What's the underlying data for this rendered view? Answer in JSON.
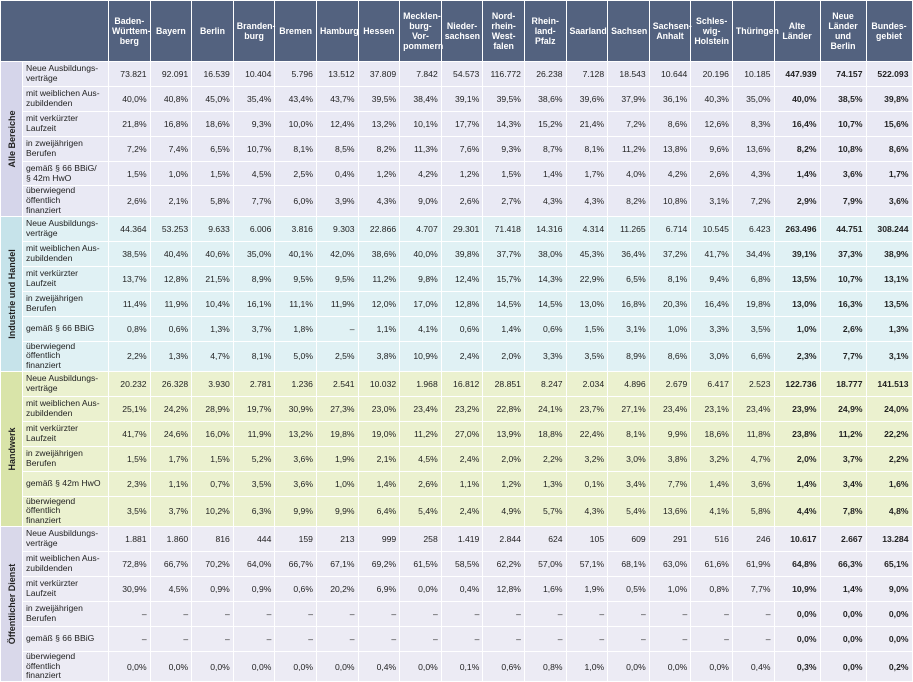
{
  "table": {
    "columns": [
      "Baden-\nWürttem-\nberg",
      "Bayern",
      "Berlin",
      "Branden-\nburg",
      "Bremen",
      "Hamburg",
      "Hessen",
      "Mecklen-\nburg-Vor-\npommern",
      "Nieder-\nsachsen",
      "Nord-\nrhein-\nWest-\nfalen",
      "Rhein-\nland-Pfalz",
      "Saarland",
      "Sachsen",
      "Sachsen-\nAnhalt",
      "Schles-\nwig-\nHolstein",
      "Thüringen",
      "Alte\nLänder",
      "Neue\nLänder und Berlin",
      "Bundes-\ngebiet"
    ],
    "sections": [
      {
        "name": "Alle Bereiche",
        "rows": [
          {
            "label": "Neue Ausbildungs-\nverträge",
            "values": [
              "73.821",
              "92.091",
              "16.539",
              "10.404",
              "5.796",
              "13.512",
              "37.809",
              "7.842",
              "54.573",
              "116.772",
              "26.238",
              "7.128",
              "18.543",
              "10.644",
              "20.196",
              "10.185",
              "447.939",
              "74.157",
              "522.093"
            ]
          },
          {
            "label": "mit weiblichen Aus-\nzubildenden",
            "values": [
              "40,0%",
              "40,8%",
              "45,0%",
              "35,4%",
              "43,4%",
              "43,7%",
              "39,5%",
              "38,4%",
              "39,1%",
              "39,5%",
              "38,6%",
              "39,6%",
              "37,9%",
              "36,1%",
              "40,3%",
              "35,0%",
              "40,0%",
              "38,5%",
              "39,8%"
            ]
          },
          {
            "label": "mit verkürzter Laufzeit",
            "values": [
              "21,8%",
              "16,8%",
              "18,6%",
              "9,3%",
              "10,0%",
              "12,4%",
              "13,2%",
              "10,1%",
              "17,7%",
              "14,3%",
              "15,2%",
              "21,4%",
              "7,2%",
              "8,6%",
              "12,6%",
              "8,3%",
              "16,4%",
              "10,7%",
              "15,6%"
            ]
          },
          {
            "label": "in zweijährigen Berufen",
            "values": [
              "7,2%",
              "7,4%",
              "6,5%",
              "10,7%",
              "8,1%",
              "8,5%",
              "8,2%",
              "11,3%",
              "7,6%",
              "9,3%",
              "8,7%",
              "8,1%",
              "11,2%",
              "13,8%",
              "9,6%",
              "13,6%",
              "8,2%",
              "10,8%",
              "8,6%"
            ]
          },
          {
            "label": "gemäß § 66 BBiG/\n§ 42m HwO",
            "values": [
              "1,5%",
              "1,0%",
              "1,5%",
              "4,5%",
              "2,5%",
              "0,4%",
              "1,2%",
              "4,2%",
              "1,2%",
              "1,5%",
              "1,4%",
              "1,7%",
              "4,0%",
              "4,2%",
              "2,6%",
              "4,3%",
              "1,4%",
              "3,6%",
              "1,7%"
            ]
          },
          {
            "label": "überwiegend öffentlich\nfinanziert",
            "values": [
              "2,6%",
              "2,1%",
              "5,8%",
              "7,7%",
              "6,0%",
              "3,9%",
              "4,3%",
              "9,0%",
              "2,6%",
              "2,7%",
              "4,3%",
              "4,3%",
              "8,2%",
              "10,8%",
              "3,1%",
              "7,2%",
              "2,9%",
              "7,9%",
              "3,6%"
            ]
          }
        ]
      },
      {
        "name": "Industrie und Handel",
        "rows": [
          {
            "label": "Neue Ausbildungs-\nverträge",
            "values": [
              "44.364",
              "53.253",
              "9.633",
              "6.006",
              "3.816",
              "9.303",
              "22.866",
              "4.707",
              "29.301",
              "71.418",
              "14.316",
              "4.314",
              "11.265",
              "6.714",
              "10.545",
              "6.423",
              "263.496",
              "44.751",
              "308.244"
            ]
          },
          {
            "label": "mit weiblichen Aus-\nzubildenden",
            "values": [
              "38,5%",
              "40,4%",
              "40,6%",
              "35,0%",
              "40,1%",
              "42,0%",
              "38,6%",
              "40,0%",
              "39,8%",
              "37,7%",
              "38,0%",
              "45,3%",
              "36,4%",
              "37,2%",
              "41,7%",
              "34,4%",
              "39,1%",
              "37,3%",
              "38,9%"
            ]
          },
          {
            "label": "mit verkürzter Laufzeit",
            "values": [
              "13,7%",
              "12,8%",
              "21,5%",
              "8,9%",
              "9,5%",
              "9,5%",
              "11,2%",
              "9,8%",
              "12,4%",
              "15,7%",
              "14,3%",
              "22,9%",
              "6,5%",
              "8,1%",
              "9,4%",
              "6,8%",
              "13,5%",
              "10,7%",
              "13,1%"
            ]
          },
          {
            "label": "in zweijährigen Berufen",
            "values": [
              "11,4%",
              "11,9%",
              "10,4%",
              "16,1%",
              "11,1%",
              "11,9%",
              "12,0%",
              "17,0%",
              "12,8%",
              "14,5%",
              "14,5%",
              "13,0%",
              "16,8%",
              "20,3%",
              "16,4%",
              "19,8%",
              "13,0%",
              "16,3%",
              "13,5%"
            ]
          },
          {
            "label": "gemäß § 66 BBiG",
            "values": [
              "0,8%",
              "0,6%",
              "1,3%",
              "3,7%",
              "1,8%",
              "–",
              "1,1%",
              "4,1%",
              "0,6%",
              "1,4%",
              "0,6%",
              "1,5%",
              "3,1%",
              "1,0%",
              "3,3%",
              "3,5%",
              "1,0%",
              "2,6%",
              "1,3%"
            ]
          },
          {
            "label": "überwiegend öffentlich\nfinanziert",
            "values": [
              "2,2%",
              "1,3%",
              "4,7%",
              "8,1%",
              "5,0%",
              "2,5%",
              "3,8%",
              "10,9%",
              "2,4%",
              "2,0%",
              "3,3%",
              "3,5%",
              "8,9%",
              "8,6%",
              "3,0%",
              "6,6%",
              "2,3%",
              "7,7%",
              "3,1%"
            ]
          }
        ]
      },
      {
        "name": "Handwerk",
        "rows": [
          {
            "label": "Neue Ausbildungs-\nverträge",
            "values": [
              "20.232",
              "26.328",
              "3.930",
              "2.781",
              "1.236",
              "2.541",
              "10.032",
              "1.968",
              "16.812",
              "28.851",
              "8.247",
              "2.034",
              "4.896",
              "2.679",
              "6.417",
              "2.523",
              "122.736",
              "18.777",
              "141.513"
            ]
          },
          {
            "label": "mit weiblichen Aus-\nzubildenden",
            "values": [
              "25,1%",
              "24,2%",
              "28,9%",
              "19,7%",
              "30,9%",
              "27,3%",
              "23,0%",
              "23,4%",
              "23,2%",
              "22,8%",
              "24,1%",
              "23,7%",
              "27,1%",
              "23,4%",
              "23,1%",
              "23,4%",
              "23,9%",
              "24,9%",
              "24,0%"
            ]
          },
          {
            "label": "mit verkürzter Laufzeit",
            "values": [
              "41,7%",
              "24,6%",
              "16,0%",
              "11,9%",
              "13,2%",
              "19,8%",
              "19,0%",
              "11,2%",
              "27,0%",
              "13,9%",
              "18,8%",
              "22,4%",
              "8,1%",
              "9,9%",
              "18,6%",
              "11,8%",
              "23,8%",
              "11,2%",
              "22,2%"
            ]
          },
          {
            "label": "in zweijährigen Berufen",
            "values": [
              "1,5%",
              "1,7%",
              "1,5%",
              "5,2%",
              "3,6%",
              "1,9%",
              "2,1%",
              "4,5%",
              "2,4%",
              "2,0%",
              "2,2%",
              "3,2%",
              "3,0%",
              "3,8%",
              "3,2%",
              "4,7%",
              "2,0%",
              "3,7%",
              "2,2%"
            ]
          },
          {
            "label": "gemäß § 42m HwO",
            "values": [
              "2,3%",
              "1,1%",
              "0,7%",
              "3,5%",
              "3,6%",
              "1,0%",
              "1,4%",
              "2,6%",
              "1,1%",
              "1,2%",
              "1,3%",
              "0,1%",
              "3,4%",
              "7,7%",
              "1,4%",
              "3,6%",
              "1,4%",
              "3,4%",
              "1,6%"
            ]
          },
          {
            "label": "überwiegend öffentlich\nfinanziert",
            "values": [
              "3,5%",
              "3,7%",
              "10,2%",
              "6,3%",
              "9,9%",
              "9,9%",
              "6,4%",
              "5,4%",
              "2,4%",
              "4,9%",
              "5,7%",
              "4,3%",
              "5,4%",
              "13,6%",
              "4,1%",
              "5,8%",
              "4,4%",
              "7,8%",
              "4,8%"
            ]
          }
        ]
      },
      {
        "name": "Öffentlicher Dienst",
        "rows": [
          {
            "label": "Neue Ausbildungs-\nverträge",
            "values": [
              "1.881",
              "1.860",
              "816",
              "444",
              "159",
              "213",
              "999",
              "258",
              "1.419",
              "2.844",
              "624",
              "105",
              "609",
              "291",
              "516",
              "246",
              "10.617",
              "2.667",
              "13.284"
            ]
          },
          {
            "label": "mit weiblichen Aus-\nzubildenden",
            "values": [
              "72,8%",
              "66,7%",
              "70,2%",
              "64,0%",
              "66,7%",
              "67,1%",
              "69,2%",
              "61,5%",
              "58,5%",
              "62,2%",
              "57,0%",
              "57,1%",
              "68,1%",
              "63,0%",
              "61,6%",
              "61,9%",
              "64,8%",
              "66,3%",
              "65,1%"
            ]
          },
          {
            "label": "mit verkürzter Laufzeit",
            "values": [
              "30,9%",
              "4,5%",
              "0,9%",
              "0,9%",
              "0,6%",
              "20,2%",
              "6,9%",
              "0,0%",
              "0,4%",
              "12,8%",
              "1,6%",
              "1,9%",
              "0,5%",
              "1,0%",
              "0,8%",
              "7,7%",
              "10,9%",
              "1,4%",
              "9,0%"
            ]
          },
          {
            "label": "in zweijährigen Berufen",
            "values": [
              "–",
              "–",
              "–",
              "–",
              "–",
              "–",
              "–",
              "–",
              "–",
              "–",
              "–",
              "–",
              "–",
              "–",
              "–",
              "–",
              "0,0%",
              "0,0%",
              "0,0%"
            ]
          },
          {
            "label": "gemäß § 66 BBiG",
            "values": [
              "–",
              "–",
              "–",
              "–",
              "–",
              "–",
              "–",
              "–",
              "–",
              "–",
              "–",
              "–",
              "–",
              "–",
              "–",
              "–",
              "0,0%",
              "0,0%",
              "0,0%"
            ]
          },
          {
            "label": "überwiegend öffentlich\nfinanziert",
            "values": [
              "0,0%",
              "0,0%",
              "0,0%",
              "0,0%",
              "0,0%",
              "0,0%",
              "0,4%",
              "0,0%",
              "0,1%",
              "0,6%",
              "0,8%",
              "1,0%",
              "0,0%",
              "0,0%",
              "0,0%",
              "0,4%",
              "0,3%",
              "0,0%",
              "0,2%"
            ]
          }
        ]
      }
    ]
  }
}
